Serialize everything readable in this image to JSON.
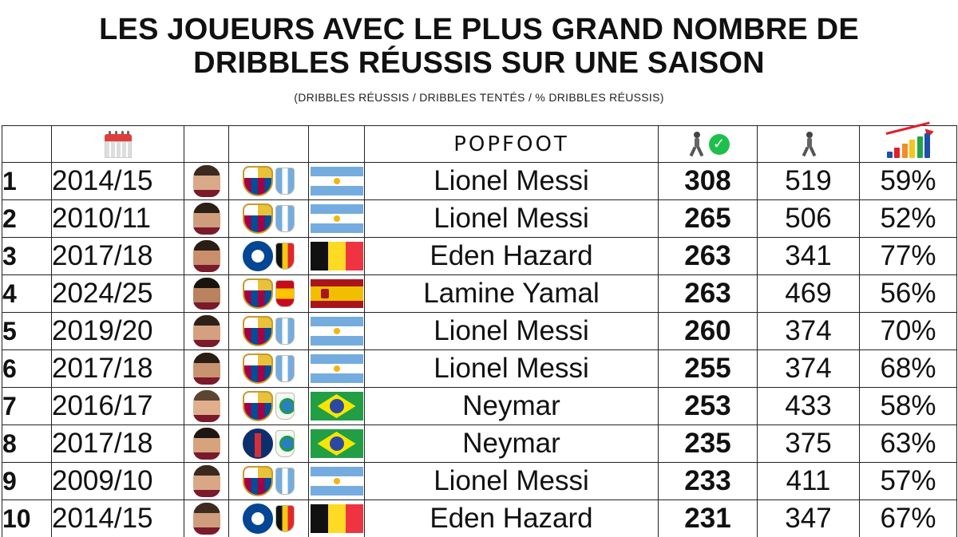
{
  "title": {
    "line1": "LES JOUEURS AVEC LE PLUS GRAND NOMBRE DE",
    "line2": "DRIBBLES RÉUSSIS SUR UNE SAISON",
    "subtitle": "(DRIBBLES RÉUSSIS / DRIBBLES TENTÉS / % DRIBBLES RÉUSSIS)"
  },
  "header": {
    "season_icon": "calendar-icon",
    "brand": "POPFOOT",
    "successful_icon": "runner-check-icon",
    "attempted_icon": "runner-icon",
    "percent_icon": "growth-chart-icon",
    "chart_colors": [
      "#1f4fa8",
      "#e21e26",
      "#f28c28",
      "#f5c518",
      "#23a347",
      "#1f4fa8"
    ]
  },
  "rows": [
    {
      "rank": "1",
      "season": "2014/15",
      "club": "barcelona-crest",
      "nation": "argentina",
      "name": "Lionel Messi",
      "successful": "308",
      "attempted": "519",
      "pct": "59%"
    },
    {
      "rank": "2",
      "season": "2010/11",
      "club": "barcelona-crest",
      "nation": "argentina",
      "name": "Lionel Messi",
      "successful": "265",
      "attempted": "506",
      "pct": "52%"
    },
    {
      "rank": "3",
      "season": "2017/18",
      "club": "chelsea-crest",
      "nation": "belgium",
      "name": "Eden Hazard",
      "successful": "263",
      "attempted": "341",
      "pct": "77%"
    },
    {
      "rank": "4",
      "season": "2024/25",
      "club": "barcelona-crest",
      "nation": "spain",
      "name": "Lamine Yamal",
      "successful": "263",
      "attempted": "469",
      "pct": "56%"
    },
    {
      "rank": "5",
      "season": "2019/20",
      "club": "barcelona-crest",
      "nation": "argentina",
      "name": "Lionel Messi",
      "successful": "260",
      "attempted": "374",
      "pct": "70%"
    },
    {
      "rank": "6",
      "season": "2017/18",
      "club": "barcelona-crest",
      "nation": "argentina",
      "name": "Lionel Messi",
      "successful": "255",
      "attempted": "374",
      "pct": "68%"
    },
    {
      "rank": "7",
      "season": "2016/17",
      "club": "barcelona-crest",
      "nation": "brazil",
      "name": "Neymar",
      "successful": "253",
      "attempted": "433",
      "pct": "58%"
    },
    {
      "rank": "8",
      "season": "2017/18",
      "club": "psg-crest",
      "nation": "brazil",
      "name": "Neymar",
      "successful": "235",
      "attempted": "375",
      "pct": "63%"
    },
    {
      "rank": "9",
      "season": "2009/10",
      "club": "barcelona-crest",
      "nation": "argentina",
      "name": "Lionel Messi",
      "successful": "233",
      "attempted": "411",
      "pct": "57%"
    },
    {
      "rank": "10",
      "season": "2014/15",
      "club": "chelsea-crest",
      "nation": "belgium",
      "name": "Eden Hazard",
      "successful": "231",
      "attempted": "347",
      "pct": "67%"
    }
  ]
}
